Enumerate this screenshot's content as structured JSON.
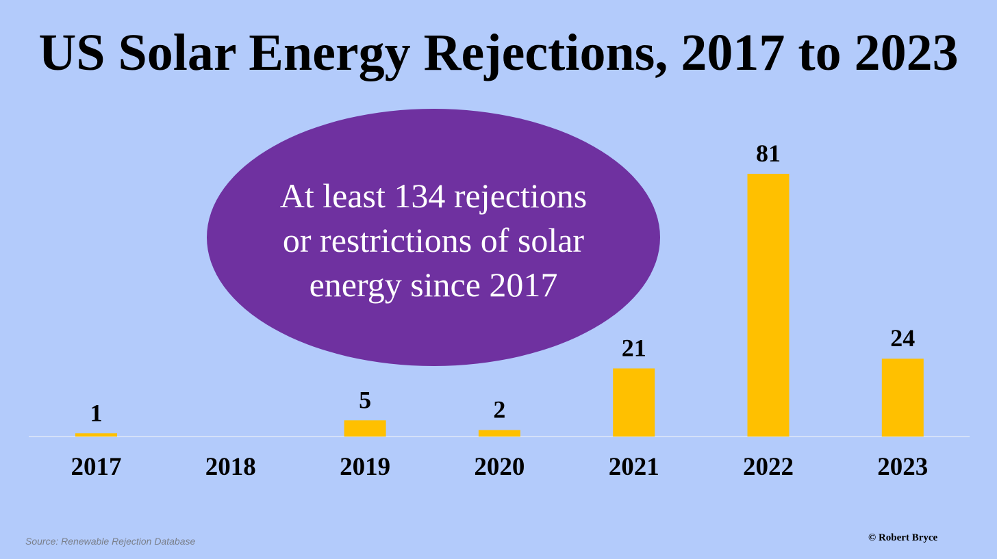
{
  "chart_data": {
    "type": "bar",
    "title": "US Solar Energy Rejections, 2017 to 2023",
    "categories": [
      "2017",
      "2018",
      "2019",
      "2020",
      "2021",
      "2022",
      "2023"
    ],
    "values": [
      1,
      0,
      5,
      2,
      21,
      81,
      24
    ],
    "data_labels": [
      "1",
      "",
      "5",
      "2",
      "21",
      "81",
      "24"
    ],
    "xlabel": "",
    "ylabel": "",
    "grid": false,
    "y_axis_visible": false,
    "bar_color": "#ffc000",
    "background_color": "#b3cbfb",
    "annotation": "At least 134 rejections or restrictions of solar energy since 2017",
    "annotation_color": "#6f31a0",
    "source": "Source: Renewable Rejection Database",
    "credit": "© Robert Bryce"
  }
}
